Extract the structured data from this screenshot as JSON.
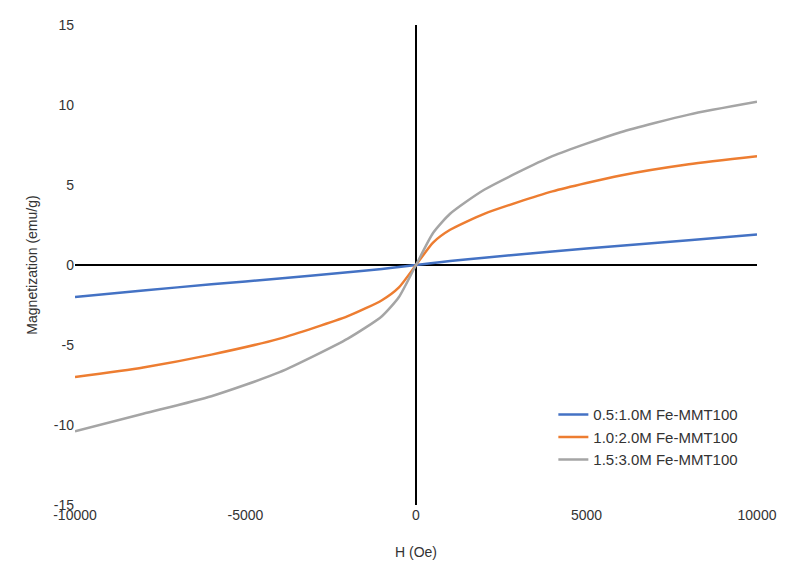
{
  "chart_data": {
    "type": "line",
    "x_label": "H (Oe)",
    "y_label": "Magnetization (emu/g)",
    "x": [
      -10000,
      -8000,
      -6000,
      -4000,
      -2000,
      -1000,
      -500,
      0,
      500,
      1000,
      2000,
      4000,
      6000,
      8000,
      10000
    ],
    "series": [
      {
        "name": "0.5:1.0M Fe-MMT100",
        "color": "#4472c4",
        "values": [
          -2.0,
          -1.6,
          -1.2,
          -0.85,
          -0.45,
          -0.25,
          -0.13,
          0,
          0.13,
          0.25,
          0.45,
          0.85,
          1.2,
          1.55,
          1.9
        ]
      },
      {
        "name": "1.0:2.0M Fe-MMT100",
        "color": "#ed7d31",
        "values": [
          -7.0,
          -6.4,
          -5.6,
          -4.6,
          -3.2,
          -2.2,
          -1.4,
          0,
          1.4,
          2.2,
          3.2,
          4.6,
          5.6,
          6.3,
          6.8
        ]
      },
      {
        "name": "1.5:3.0M Fe-MMT100",
        "color": "#a5a5a5",
        "values": [
          -10.4,
          -9.3,
          -8.2,
          -6.7,
          -4.6,
          -3.2,
          -2.0,
          0,
          2.0,
          3.2,
          4.7,
          6.8,
          8.3,
          9.4,
          10.2
        ]
      }
    ],
    "xlim": [
      -10000,
      10000
    ],
    "xticks": [
      -10000,
      -5000,
      0,
      5000,
      10000
    ],
    "ylim": [
      -15,
      15
    ],
    "yticks": [
      -15,
      -10,
      -5,
      0,
      5,
      10,
      15
    ],
    "grid": false,
    "legend": "lower right"
  }
}
